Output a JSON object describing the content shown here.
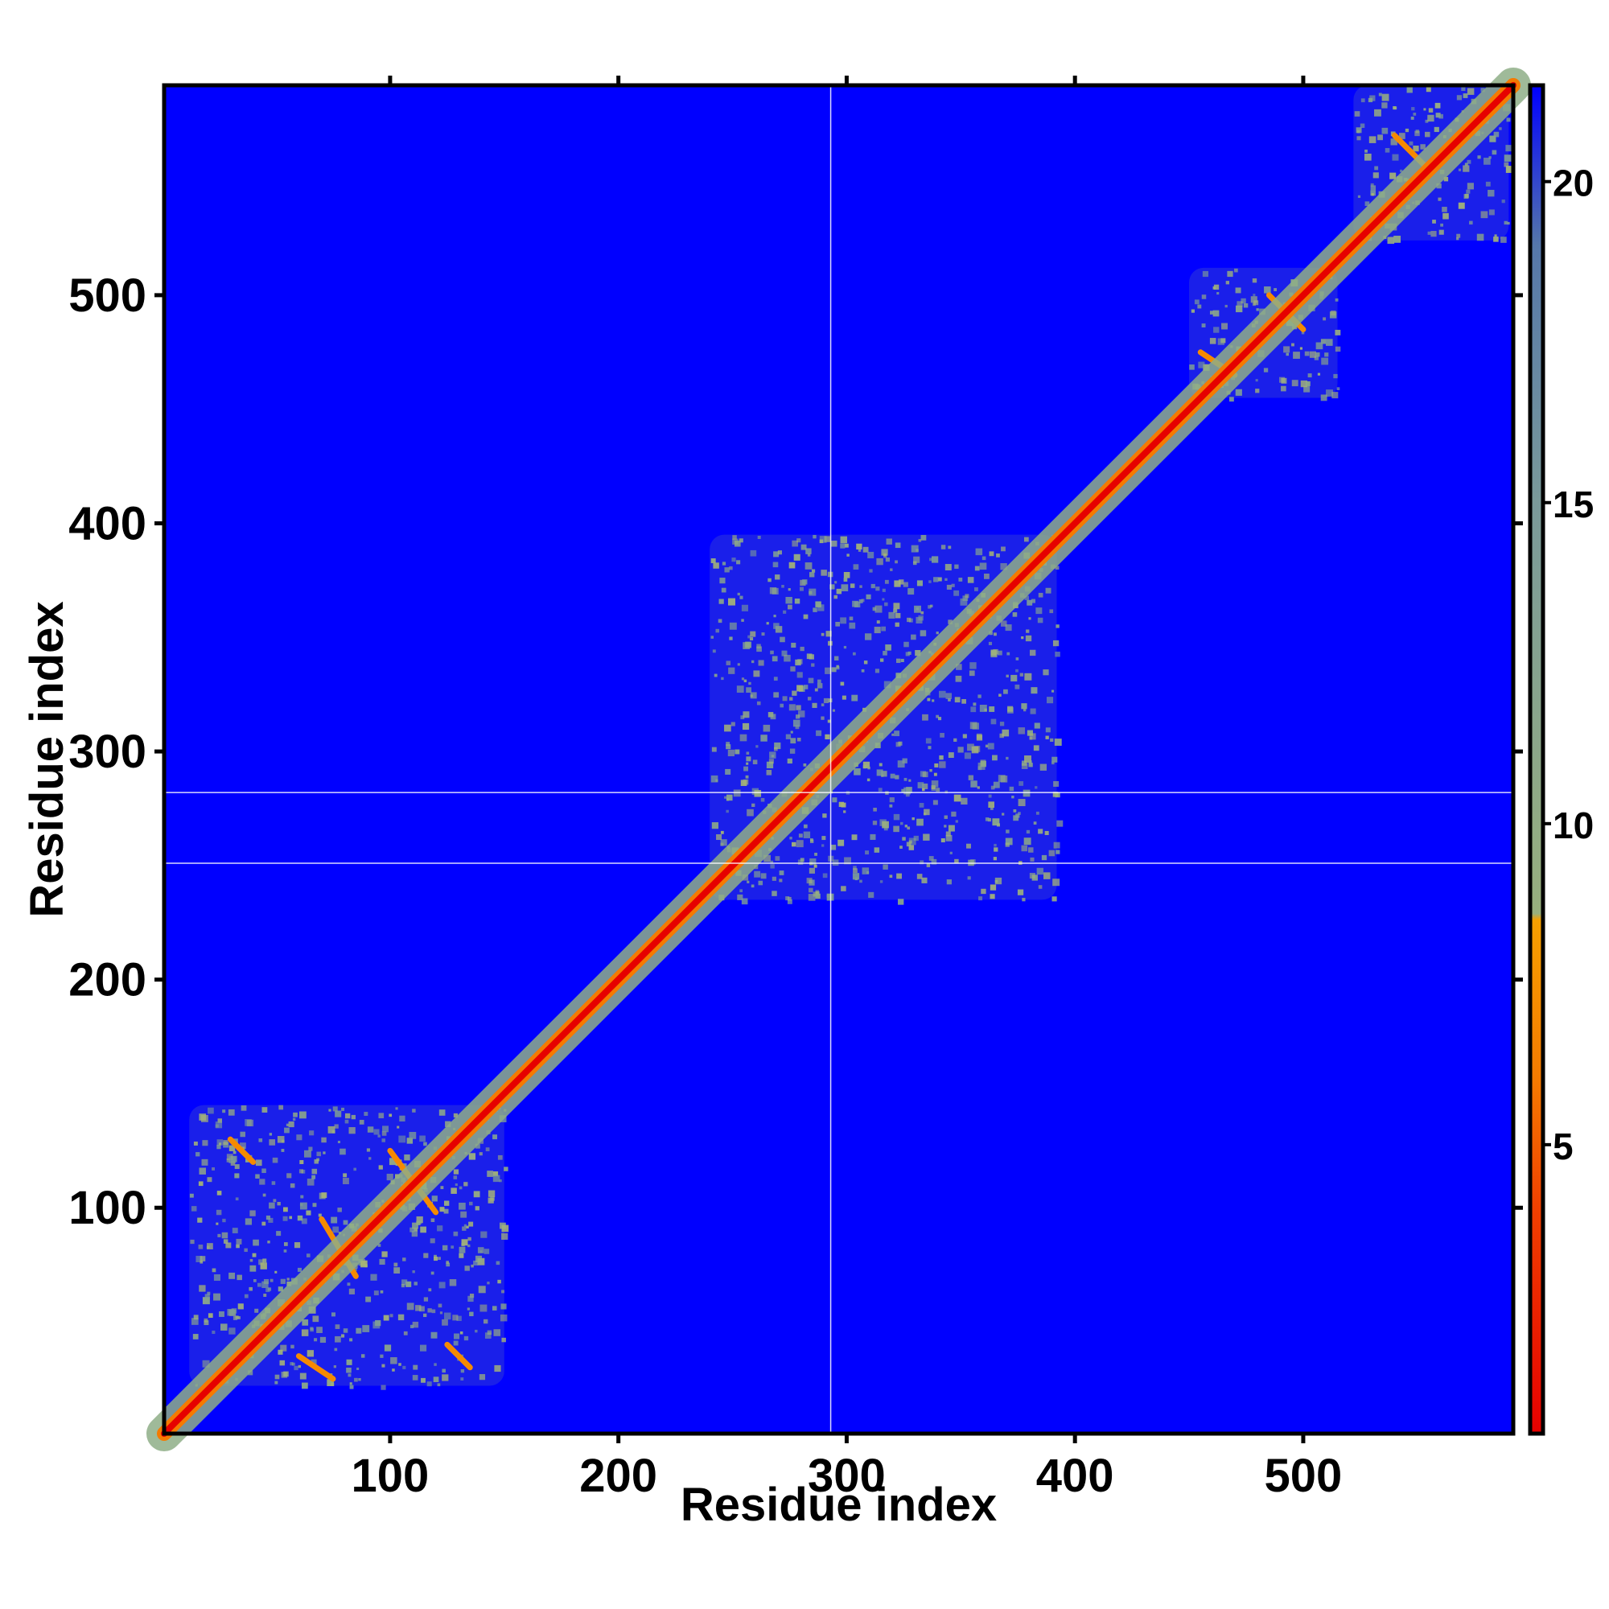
{
  "chart_data": {
    "type": "heatmap",
    "title": "",
    "xlabel": "Residue index",
    "ylabel": "Residue index",
    "xlim": [
      1,
      592
    ],
    "ylim": [
      1,
      592
    ],
    "x_ticks": [
      100,
      200,
      300,
      400,
      500
    ],
    "y_ticks": [
      100,
      200,
      300,
      400,
      500
    ],
    "grid": false,
    "colorbar": {
      "ticks": [
        5,
        10,
        15,
        20
      ],
      "range": [
        0.5,
        21.5
      ],
      "stops": [
        {
          "value": 0.5,
          "color": "#e60000"
        },
        {
          "value": 4.0,
          "color": "#f04000"
        },
        {
          "value": 6.0,
          "color": "#f57a00"
        },
        {
          "value": 8.5,
          "color": "#f6a000"
        },
        {
          "value": 8.6,
          "color": "#98b07e"
        },
        {
          "value": 15.0,
          "color": "#7a9a9a"
        },
        {
          "value": 19.0,
          "color": "#5577aa"
        },
        {
          "value": 21.5,
          "color": "#0000ff"
        }
      ]
    },
    "background_color": "#0000ff",
    "gap_lines": {
      "x": [
        293
      ],
      "y": [
        251,
        282
      ]
    },
    "diagonal": {
      "from": 1,
      "to": 592
    },
    "contact_blocks": [
      {
        "x": [
          12,
          150
        ],
        "y": [
          22,
          145
        ]
      },
      {
        "x": [
          240,
          392
        ],
        "y": [
          235,
          395
        ]
      },
      {
        "x": [
          450,
          515
        ],
        "y": [
          455,
          512
        ]
      },
      {
        "x": [
          522,
          590
        ],
        "y": [
          524,
          592
        ]
      }
    ],
    "helix_contacts": [
      {
        "x": [
          70,
          85
        ],
        "y": [
          70,
          95
        ]
      },
      {
        "x": [
          100,
          120
        ],
        "y": [
          98,
          125
        ]
      },
      {
        "x": [
          30,
          40
        ],
        "y": [
          120,
          130
        ]
      },
      {
        "x": [
          60,
          75
        ],
        "y": [
          25,
          35
        ]
      },
      {
        "x": [
          125,
          135
        ],
        "y": [
          30,
          40
        ]
      },
      {
        "x": [
          455,
          470
        ],
        "y": [
          465,
          475
        ]
      },
      {
        "x": [
          485,
          500
        ],
        "y": [
          485,
          500
        ]
      },
      {
        "x": [
          540,
          555
        ],
        "y": [
          555,
          570
        ]
      }
    ]
  }
}
